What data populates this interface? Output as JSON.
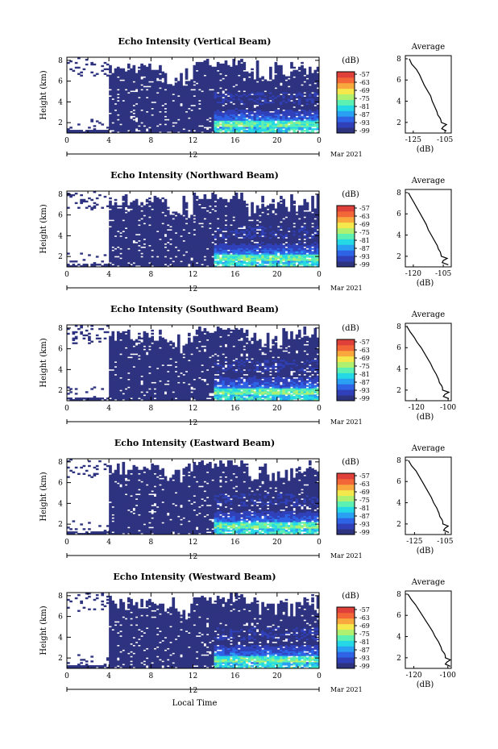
{
  "figure": {
    "xlabel": "Local Time",
    "date_label": "Mar 2021",
    "y_label": "Height (km)",
    "x_ticks": [
      "0",
      "4",
      "8",
      "12",
      "16",
      "20",
      "0"
    ],
    "x_center_label": "12",
    "y_ticks": [
      "2",
      "4",
      "6",
      "8"
    ],
    "colorbar_unit": "(dB)",
    "colorbar_ticks": [
      "-57",
      "-63",
      "-69",
      "-75",
      "-81",
      "-87",
      "-93",
      "-99"
    ],
    "colorbar_colors": [
      "#2e3380",
      "#3040b8",
      "#2f63e6",
      "#2aa0f2",
      "#25d8e6",
      "#5cf0b2",
      "#b0f070",
      "#f4e84c",
      "#f8a83c",
      "#f26638",
      "#e0403a"
    ],
    "avg_title": "Average",
    "avg_unit": "(dB)",
    "series_color": "#2e3380"
  },
  "chart_data": [
    {
      "type": "heatmap",
      "title": "Echo Intensity (Vertical Beam)",
      "xlabel": "Local Time",
      "ylabel": "Height (km)",
      "xlim": [
        0,
        24
      ],
      "ylim": [
        1,
        8.3
      ],
      "colorbar": {
        "label": "(dB)",
        "range": [
          -99,
          -57
        ]
      },
      "profile": {
        "title": "Average",
        "xlabel": "(dB)",
        "xticks": [
          "-125",
          "-105"
        ],
        "xlim": [
          -130,
          -101
        ],
        "heights": [
          8,
          7.5,
          7,
          6.5,
          6,
          5.5,
          5,
          4.5,
          4,
          3.5,
          3,
          2.7,
          2.4,
          2.2,
          2.0,
          1.8,
          1.6,
          1.4,
          1.2
        ],
        "values": [
          -127.5,
          -126,
          -123,
          -121,
          -119.5,
          -118,
          -116,
          -114,
          -113,
          -111.5,
          -110,
          -109.5,
          -108,
          -107.5,
          -107.3,
          -104,
          -106,
          -107,
          -104
        ]
      }
    },
    {
      "type": "heatmap",
      "title": "Echo Intensity (Northward Beam)",
      "xlabel": "Local Time",
      "ylabel": "Height (km)",
      "xlim": [
        0,
        24
      ],
      "ylim": [
        1,
        8.3
      ],
      "colorbar": {
        "label": "(dB)",
        "range": [
          -99,
          -57
        ]
      },
      "profile": {
        "title": "Average",
        "xlabel": "(dB)",
        "xticks": [
          "-120",
          "-105"
        ],
        "xlim": [
          -124,
          -101
        ],
        "heights": [
          8,
          7.5,
          7,
          6.5,
          6,
          5.5,
          5,
          4.5,
          4,
          3.5,
          3,
          2.7,
          2.4,
          2.2,
          2.0,
          1.8,
          1.6,
          1.4,
          1.2
        ],
        "values": [
          -122.5,
          -121,
          -119.5,
          -118,
          -116.5,
          -115,
          -113.5,
          -112.5,
          -111,
          -109.5,
          -108,
          -107.5,
          -106.5,
          -106.2,
          -106,
          -103,
          -105,
          -105.5,
          -102.5
        ]
      }
    },
    {
      "type": "heatmap",
      "title": "Echo Intensity (Southward Beam)",
      "xlabel": "Local Time",
      "ylabel": "Height (km)",
      "xlim": [
        0,
        24
      ],
      "ylim": [
        1,
        8.3
      ],
      "colorbar": {
        "label": "(dB)",
        "range": [
          -99,
          -57
        ]
      },
      "profile": {
        "title": "Average",
        "xlabel": "(dB)",
        "xticks": [
          "-120",
          "-100"
        ],
        "xlim": [
          -127,
          -98
        ],
        "heights": [
          8,
          7.5,
          7,
          6.5,
          6,
          5.5,
          5,
          4.5,
          4,
          3.5,
          3,
          2.7,
          2.4,
          2.2,
          2.0,
          1.8,
          1.6,
          1.4,
          1.2
        ],
        "values": [
          -126,
          -124,
          -121.5,
          -119.5,
          -117,
          -115,
          -113,
          -111,
          -109.5,
          -107.5,
          -106,
          -105.5,
          -104,
          -103.5,
          -103.5,
          -99.5,
          -102,
          -103,
          -99.5
        ]
      }
    },
    {
      "type": "heatmap",
      "title": "Echo Intensity (Eastward Beam)",
      "xlabel": "Local Time",
      "ylabel": "Height (km)",
      "xlim": [
        0,
        24
      ],
      "ylim": [
        1,
        8.3
      ],
      "colorbar": {
        "label": "(dB)",
        "range": [
          -99,
          -57
        ]
      },
      "profile": {
        "title": "Average",
        "xlabel": "(dB)",
        "xticks": [
          "-125",
          "-105"
        ],
        "xlim": [
          -131,
          -101
        ],
        "heights": [
          8,
          7.5,
          7,
          6.5,
          6,
          5.5,
          5,
          4.5,
          4,
          3.5,
          3,
          2.7,
          2.4,
          2.2,
          2.0,
          1.8,
          1.6,
          1.4,
          1.2
        ],
        "values": [
          -129,
          -127,
          -124,
          -122,
          -120,
          -118,
          -116,
          -114,
          -112.5,
          -110.5,
          -109,
          -108.5,
          -107,
          -106.5,
          -106.5,
          -103,
          -105,
          -106,
          -102.5
        ]
      }
    },
    {
      "type": "heatmap",
      "title": "Echo Intensity (Westward Beam)",
      "xlabel": "Local Time",
      "ylabel": "Height (km)",
      "xlim": [
        0,
        24
      ],
      "ylim": [
        1,
        8.3
      ],
      "colorbar": {
        "label": "(dB)",
        "range": [
          -99,
          -57
        ]
      },
      "profile": {
        "title": "Average",
        "xlabel": "(dB)",
        "xticks": [
          "-120",
          "-100"
        ],
        "xlim": [
          -125,
          -98
        ],
        "heights": [
          8,
          7.5,
          7,
          6.5,
          6,
          5.5,
          5,
          4.5,
          4,
          3.5,
          3,
          2.7,
          2.4,
          2.2,
          2.0,
          1.8,
          1.6,
          1.4,
          1.2
        ],
        "values": [
          -123.5,
          -121.5,
          -119,
          -117,
          -115,
          -113,
          -111,
          -109,
          -107.5,
          -105.5,
          -104,
          -103.5,
          -102,
          -101.5,
          -101.5,
          -98.5,
          -100.5,
          -101.5,
          -98.5
        ]
      }
    }
  ]
}
